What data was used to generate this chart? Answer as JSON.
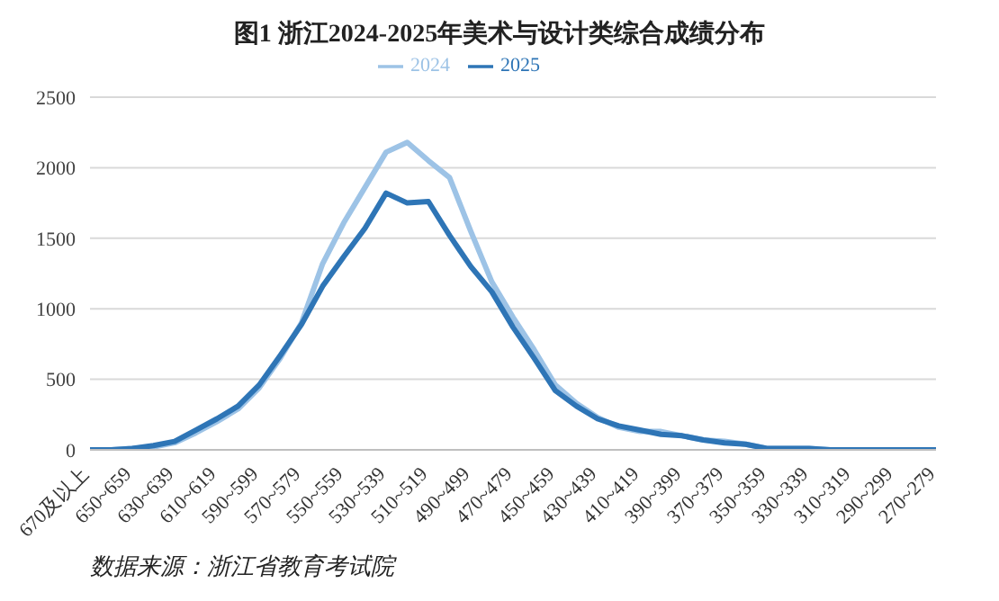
{
  "chart_data": {
    "type": "line",
    "title": "图1  浙江2024-2025年美术与设计类综合成绩分布",
    "categories": [
      "670及以上",
      null,
      "650~659",
      null,
      "630~639",
      null,
      "610~619",
      null,
      "590~599",
      null,
      "570~579",
      null,
      "550~559",
      null,
      "530~539",
      null,
      "510~519",
      null,
      "490~499",
      null,
      "470~479",
      null,
      "450~459",
      null,
      "430~439",
      null,
      "410~419",
      null,
      "390~399",
      null,
      "370~379",
      null,
      "350~359",
      null,
      "330~339",
      null,
      "310~319",
      null,
      "290~299",
      null,
      "270~279"
    ],
    "series": [
      {
        "name": "2024",
        "color": "#9dc3e6",
        "values": [
          0,
          0,
          10,
          20,
          50,
          120,
          200,
          290,
          440,
          650,
          900,
          1320,
          1610,
          1860,
          2110,
          2180,
          2050,
          1930,
          1550,
          1190,
          940,
          710,
          460,
          330,
          230,
          160,
          130,
          130,
          100,
          70,
          60,
          40,
          10,
          10,
          10,
          0,
          0,
          0,
          0,
          0,
          0
        ]
      },
      {
        "name": "2025",
        "color": "#2e75b6",
        "values": [
          0,
          0,
          10,
          30,
          60,
          140,
          220,
          310,
          460,
          670,
          890,
          1160,
          1370,
          1570,
          1820,
          1750,
          1760,
          1520,
          1300,
          1120,
          870,
          650,
          420,
          310,
          220,
          170,
          140,
          110,
          100,
          70,
          50,
          40,
          10,
          10,
          10,
          0,
          0,
          0,
          0,
          0,
          0
        ]
      }
    ],
    "ylim": [
      0,
      2500
    ],
    "yticks": [
      0,
      500,
      1000,
      1500,
      2000,
      2500
    ],
    "grid": "y",
    "legend": "top",
    "marker": "none",
    "line_style": "solid",
    "annotations": [
      "数据来源：浙江省教育考试院"
    ]
  }
}
